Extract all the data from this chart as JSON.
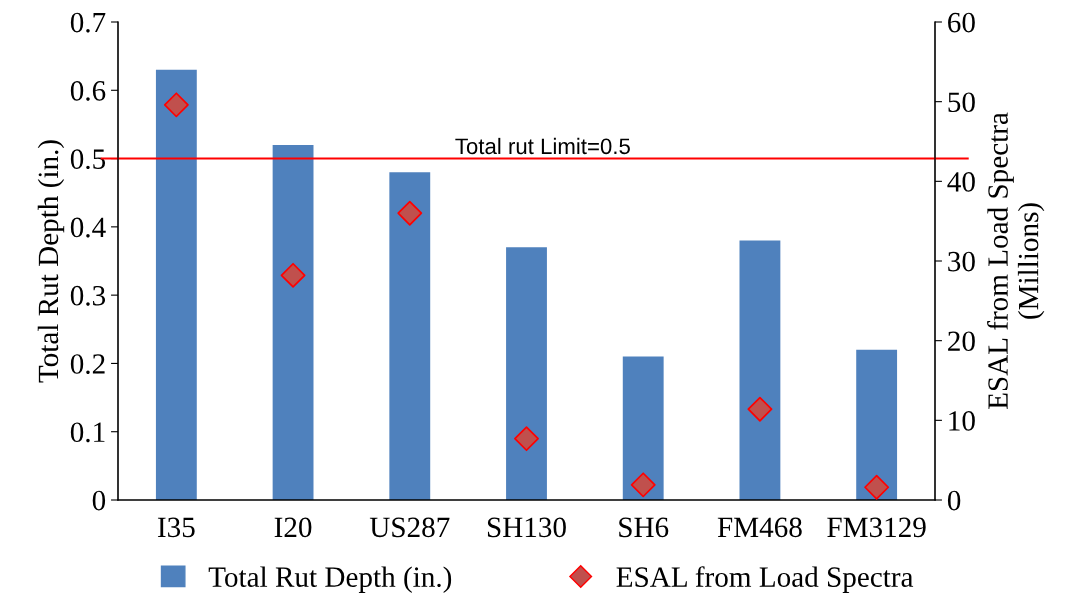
{
  "chart_data": {
    "type": "bar",
    "categories": [
      "I35",
      "I20",
      "US287",
      "SH130",
      "SH6",
      "FM468",
      "FM3129"
    ],
    "ylabel": "Total Rut Depth (in.)",
    "y2label": "ESAL from Load Spectra\n(Millions)",
    "series": [
      {
        "name": "Total Rut Depth (in.)",
        "color": "#4f81bd",
        "values": [
          0.63,
          0.52,
          0.48,
          0.37,
          0.21,
          0.38,
          0.22
        ]
      },
      {
        "name": "ESAL from Load Spectra",
        "type": "scatter",
        "axis": "y2",
        "color": "#c0504d",
        "marker": "diamond",
        "values": [
          49.6,
          28.2,
          36.0,
          7.7,
          1.9,
          11.4,
          1.6
        ]
      }
    ],
    "ylim": [
      0,
      0.7
    ],
    "yticks": [
      0,
      0.1,
      0.2,
      0.3,
      0.4,
      0.5,
      0.6,
      0.7
    ],
    "y2lim": [
      0,
      60
    ],
    "y2ticks": [
      0,
      10,
      20,
      30,
      40,
      50,
      60
    ],
    "ref_lines": [
      {
        "axis": "y",
        "value": 0.5,
        "label": "Total rut Limit=0.5",
        "color": "#ff0000"
      }
    ],
    "legend": "bottom",
    "grid": false
  }
}
